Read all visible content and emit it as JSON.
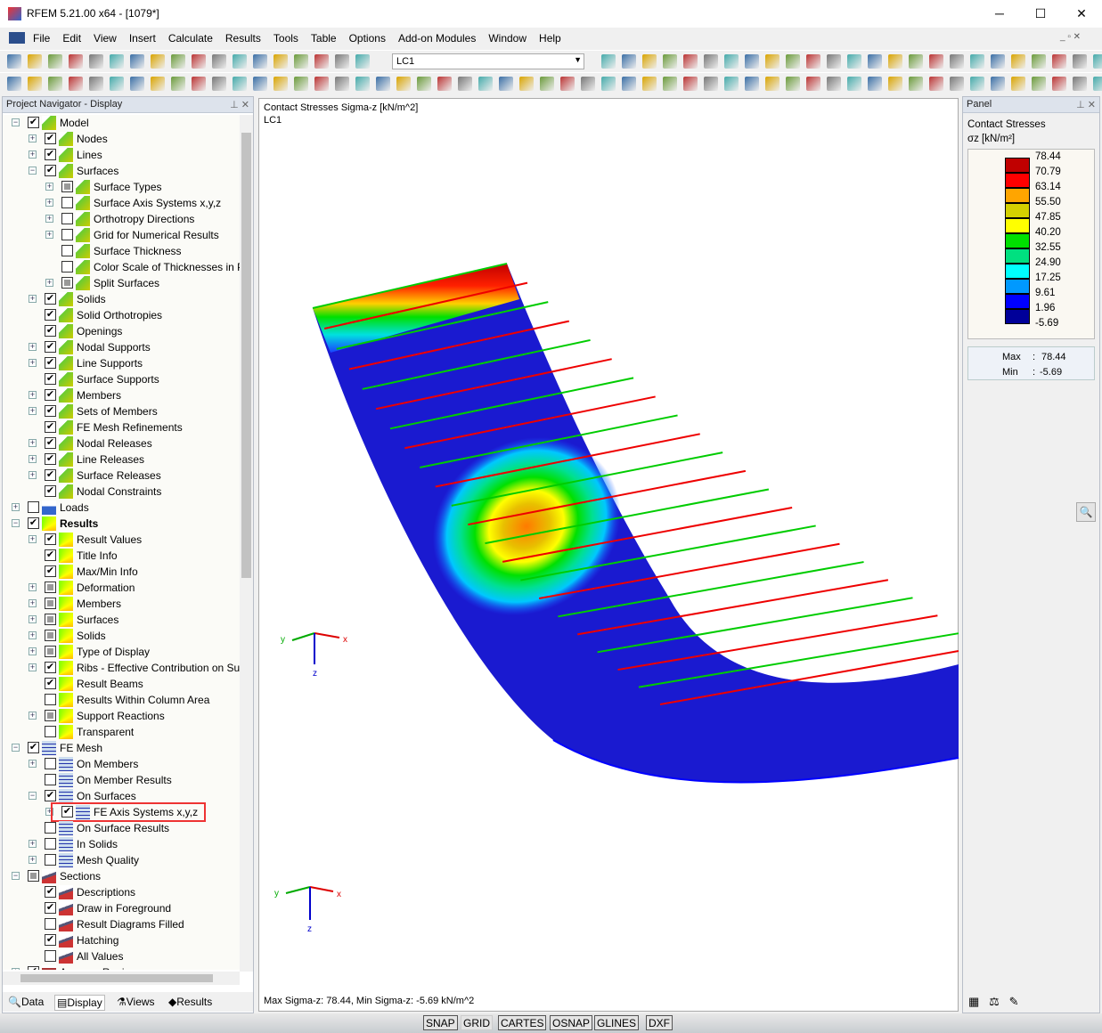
{
  "window": {
    "title": "RFEM 5.21.00 x64 - [1079*]",
    "minimize": "─",
    "maximize": "☐",
    "close": "✕"
  },
  "menu": [
    "File",
    "Edit",
    "View",
    "Insert",
    "Calculate",
    "Results",
    "Tools",
    "Table",
    "Options",
    "Add-on Modules",
    "Window",
    "Help"
  ],
  "toolbar": {
    "load_case": "LC1"
  },
  "navigator": {
    "title": "Project Navigator - Display",
    "items": [
      {
        "label": "Model",
        "level": 0,
        "exp": "-",
        "state": "c",
        "icon": "model"
      },
      {
        "label": "Nodes",
        "level": 1,
        "exp": "+",
        "state": "c",
        "icon": "model"
      },
      {
        "label": "Lines",
        "level": 1,
        "exp": "+",
        "state": "c",
        "icon": "model"
      },
      {
        "label": "Surfaces",
        "level": 1,
        "exp": "-",
        "state": "c",
        "icon": "model"
      },
      {
        "label": "Surface Types",
        "level": 2,
        "exp": "+",
        "state": "p",
        "icon": "model"
      },
      {
        "label": "Surface Axis Systems x,y,z",
        "level": 2,
        "exp": "+",
        "state": "u",
        "icon": "model"
      },
      {
        "label": "Orthotropy Directions",
        "level": 2,
        "exp": "+",
        "state": "u",
        "icon": "model"
      },
      {
        "label": "Grid for Numerical Results",
        "level": 2,
        "exp": "+",
        "state": "u",
        "icon": "model"
      },
      {
        "label": "Surface Thickness",
        "level": 2,
        "exp": "",
        "state": "u",
        "icon": "model"
      },
      {
        "label": "Color Scale of Thicknesses in Pa",
        "level": 2,
        "exp": "",
        "state": "u",
        "icon": "model"
      },
      {
        "label": "Split Surfaces",
        "level": 2,
        "exp": "+",
        "state": "p",
        "icon": "model"
      },
      {
        "label": "Solids",
        "level": 1,
        "exp": "+",
        "state": "c",
        "icon": "model"
      },
      {
        "label": "Solid Orthotropies",
        "level": 1,
        "exp": "",
        "state": "c",
        "icon": "model"
      },
      {
        "label": "Openings",
        "level": 1,
        "exp": "",
        "state": "c",
        "icon": "model"
      },
      {
        "label": "Nodal Supports",
        "level": 1,
        "exp": "+",
        "state": "c",
        "icon": "model"
      },
      {
        "label": "Line Supports",
        "level": 1,
        "exp": "+",
        "state": "c",
        "icon": "model"
      },
      {
        "label": "Surface Supports",
        "level": 1,
        "exp": "",
        "state": "c",
        "icon": "model"
      },
      {
        "label": "Members",
        "level": 1,
        "exp": "+",
        "state": "c",
        "icon": "model"
      },
      {
        "label": "Sets of Members",
        "level": 1,
        "exp": "+",
        "state": "c",
        "icon": "model"
      },
      {
        "label": "FE Mesh Refinements",
        "level": 1,
        "exp": "",
        "state": "c",
        "icon": "model"
      },
      {
        "label": "Nodal Releases",
        "level": 1,
        "exp": "+",
        "state": "c",
        "icon": "model"
      },
      {
        "label": "Line Releases",
        "level": 1,
        "exp": "+",
        "state": "c",
        "icon": "model"
      },
      {
        "label": "Surface Releases",
        "level": 1,
        "exp": "+",
        "state": "c",
        "icon": "model"
      },
      {
        "label": "Nodal Constraints",
        "level": 1,
        "exp": "",
        "state": "c",
        "icon": "model"
      },
      {
        "label": "Loads",
        "level": 0,
        "exp": "+",
        "state": "u",
        "icon": "load"
      },
      {
        "label": "Results",
        "level": 0,
        "exp": "-",
        "state": "c",
        "icon": "results",
        "bold": true
      },
      {
        "label": "Result Values",
        "level": 1,
        "exp": "+",
        "state": "c",
        "icon": "results"
      },
      {
        "label": "Title Info",
        "level": 1,
        "exp": "",
        "state": "c",
        "icon": "results"
      },
      {
        "label": "Max/Min Info",
        "level": 1,
        "exp": "",
        "state": "c",
        "icon": "results"
      },
      {
        "label": "Deformation",
        "level": 1,
        "exp": "+",
        "state": "p",
        "icon": "results"
      },
      {
        "label": "Members",
        "level": 1,
        "exp": "+",
        "state": "p",
        "icon": "results"
      },
      {
        "label": "Surfaces",
        "level": 1,
        "exp": "+",
        "state": "p",
        "icon": "results"
      },
      {
        "label": "Solids",
        "level": 1,
        "exp": "+",
        "state": "p",
        "icon": "results"
      },
      {
        "label": "Type of Display",
        "level": 1,
        "exp": "+",
        "state": "p",
        "icon": "results"
      },
      {
        "label": "Ribs - Effective Contribution on Su",
        "level": 1,
        "exp": "+",
        "state": "c",
        "icon": "results"
      },
      {
        "label": "Result Beams",
        "level": 1,
        "exp": "",
        "state": "c",
        "icon": "results"
      },
      {
        "label": "Results Within Column Area",
        "level": 1,
        "exp": "",
        "state": "u",
        "icon": "results"
      },
      {
        "label": "Support Reactions",
        "level": 1,
        "exp": "+",
        "state": "p",
        "icon": "results"
      },
      {
        "label": "Transparent",
        "level": 1,
        "exp": "",
        "state": "u",
        "icon": "results"
      },
      {
        "label": "FE Mesh",
        "level": 0,
        "exp": "-",
        "state": "c",
        "icon": "mesh"
      },
      {
        "label": "On Members",
        "level": 1,
        "exp": "+",
        "state": "u",
        "icon": "mesh"
      },
      {
        "label": "On Member Results",
        "level": 1,
        "exp": "",
        "state": "u",
        "icon": "mesh"
      },
      {
        "label": "On Surfaces",
        "level": 1,
        "exp": "-",
        "state": "c",
        "icon": "mesh"
      },
      {
        "label": "FE Axis Systems x,y,z",
        "level": 2,
        "exp": "+",
        "state": "c",
        "icon": "mesh",
        "highlight": true
      },
      {
        "label": "On Surface Results",
        "level": 1,
        "exp": "",
        "state": "u",
        "icon": "mesh"
      },
      {
        "label": "In Solids",
        "level": 1,
        "exp": "+",
        "state": "u",
        "icon": "mesh"
      },
      {
        "label": "Mesh Quality",
        "level": 1,
        "exp": "+",
        "state": "u",
        "icon": "mesh"
      },
      {
        "label": "Sections",
        "level": 0,
        "exp": "-",
        "state": "p",
        "icon": "section"
      },
      {
        "label": "Descriptions",
        "level": 1,
        "exp": "",
        "state": "c",
        "icon": "section"
      },
      {
        "label": "Draw in Foreground",
        "level": 1,
        "exp": "",
        "state": "c",
        "icon": "section"
      },
      {
        "label": "Result Diagrams Filled",
        "level": 1,
        "exp": "",
        "state": "u",
        "icon": "section"
      },
      {
        "label": "Hatching",
        "level": 1,
        "exp": "",
        "state": "c",
        "icon": "section"
      },
      {
        "label": "All Values",
        "level": 1,
        "exp": "",
        "state": "u",
        "icon": "section"
      },
      {
        "label": "Average Regions",
        "level": 0,
        "exp": "+",
        "state": "c",
        "icon": "avg"
      }
    ],
    "tabs": [
      "Data",
      "Display",
      "Views",
      "Results"
    ]
  },
  "viewport": {
    "title": "Contact Stresses Sigma-z [kN/m^2]",
    "load_case": "LC1",
    "footer": "Max Sigma-z: 78.44, Min Sigma-z: -5.69 kN/m^2",
    "axis_labels": {
      "x": "x",
      "y": "y",
      "z": "z"
    }
  },
  "panel": {
    "title": "Panel",
    "heading": "Contact Stresses",
    "unit": "σz [kN/m²]",
    "legend_values": [
      "78.44",
      "70.79",
      "63.14",
      "55.50",
      "47.85",
      "40.20",
      "32.55",
      "24.90",
      "17.25",
      "9.61",
      "1.96",
      "-5.69"
    ],
    "legend_colors": [
      "#c00000",
      "#ff0000",
      "#ffa500",
      "#d4d000",
      "#ffff00",
      "#00e000",
      "#00e080",
      "#00ffff",
      "#0099ff",
      "#0000ff",
      "#000099"
    ],
    "max_label": "Max",
    "max_value": "78.44",
    "min_label": "Min",
    "min_value": "-5.69"
  },
  "statusbar": [
    "SNAP",
    "GRID",
    "CARTES",
    "OSNAP",
    "GLINES",
    "DXF"
  ]
}
